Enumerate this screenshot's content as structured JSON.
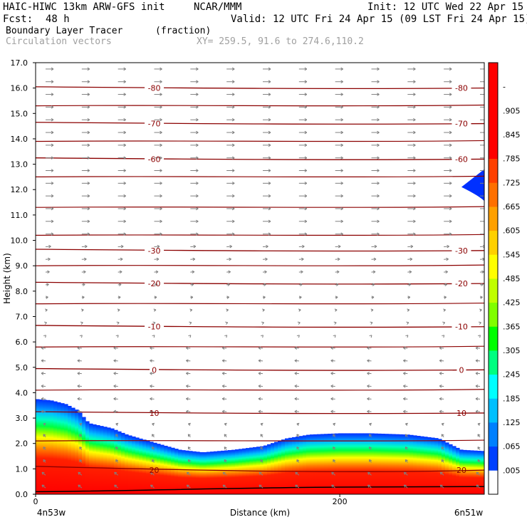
{
  "header": {
    "model": "HAIC-HIWC 13km ARW-GFS init",
    "org": "NCAR/MMM",
    "init": "Init: 12 UTC Wed 22 Apr 15",
    "fcst_label": "Fcst:",
    "fcst_value": "48 h",
    "valid": "Valid: 12 UTC Fri 24 Apr 15 (09 LST Fri 24 Apr 15)",
    "field": "Boundary Layer Tracer",
    "units": "(fraction)",
    "vectors": "Circulation vectors",
    "xy": "XY= 259.5, 91.6 to 274.6,110.2"
  },
  "chart_data": {
    "type": "heatmap",
    "title": "Boundary Layer Tracer (fraction)",
    "xlabel": "Distance (km)",
    "ylabel": "Height (km)",
    "xlim": [
      0,
      295
    ],
    "ylim": [
      0,
      17
    ],
    "x_tick_values": [
      0,
      200
    ],
    "x_tick_labels": [
      "0",
      "200"
    ],
    "x_end_labels": [
      "4n53w",
      "6n51w"
    ],
    "y_ticks": [
      0,
      1,
      2,
      3,
      4,
      5,
      6,
      7,
      8,
      9,
      10,
      11,
      12,
      13,
      14,
      15,
      16,
      17
    ],
    "y_tick_labels": [
      "0.0",
      "1.0",
      "2.0",
      "3.0",
      "4.0",
      "5.0",
      "6.0",
      "7.0",
      "8.0",
      "9.0",
      "10.0",
      "11.0",
      "12.0",
      "13.0",
      "14.0",
      "15.0",
      "16.0",
      "17.0"
    ],
    "colorbar": {
      "labels": [
        ".005",
        ".065",
        ".125",
        ".185",
        ".245",
        ".305",
        ".365",
        ".425",
        ".485",
        ".545",
        ".605",
        ".665",
        ".725",
        ".785",
        ".845",
        ".905",
        "-"
      ],
      "colors": [
        "#ffffff",
        "#0040ff",
        "#0080ff",
        "#00c0ff",
        "#00ffff",
        "#00ff80",
        "#00ff00",
        "#80ff00",
        "#c0ff00",
        "#ffff00",
        "#ffd000",
        "#ffa000",
        "#ff7000",
        "#ff4000",
        "#ff0000",
        "#ff0000",
        "#ff0000",
        "#ff0000"
      ]
    },
    "tracer_top_km": {
      "x": [
        0,
        10,
        20,
        28,
        35,
        50,
        60,
        80,
        95,
        110,
        130,
        150,
        165,
        180,
        200,
        220,
        245,
        265,
        280,
        295
      ],
      "y": [
        3.75,
        3.7,
        3.55,
        3.3,
        2.8,
        2.6,
        2.35,
        2.0,
        1.75,
        1.65,
        1.75,
        1.9,
        2.2,
        2.35,
        2.4,
        2.4,
        2.35,
        2.2,
        1.75,
        1.7
      ]
    },
    "upper_tracer_patch": {
      "x": [
        280,
        295
      ],
      "y_center": 12.1,
      "thickness_km": 1.0
    },
    "temperature_contours": [
      {
        "level": "-80",
        "z": 16.0
      },
      {
        "level": "-70",
        "z": 14.6
      },
      {
        "level": "-60",
        "z": 13.2
      },
      {
        "level": "-30",
        "z": 9.6
      },
      {
        "level": "-20",
        "z": 8.3
      },
      {
        "level": "-10",
        "z": 6.6
      },
      {
        "level": "0",
        "z": 4.9
      },
      {
        "level": "10",
        "z": 3.2
      },
      {
        "level": "20",
        "z": 0.95
      }
    ],
    "unlabeled_contours_z": [
      15.3,
      13.9,
      12.5,
      11.3,
      10.2,
      9.0,
      7.5,
      5.8,
      4.1,
      2.1
    ],
    "colors": {
      "contour": "#8b0000",
      "vector": "#808080",
      "frame": "#000000"
    }
  }
}
